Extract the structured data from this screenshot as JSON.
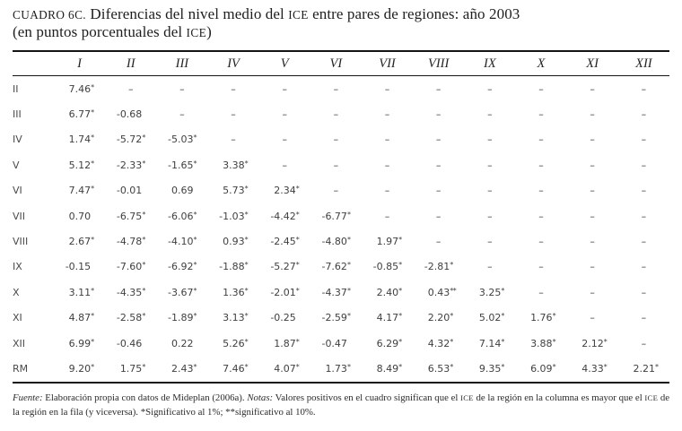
{
  "title": {
    "label": "CUADRO 6C.",
    "ice": "ICE",
    "line1_a": " Diferencias del nivel medio del ",
    "line1_b": " entre pares de regiones: año 2003",
    "line2_a": "(en puntos porcentuales del ",
    "line2_b": ")"
  },
  "table": {
    "empty_marker": "–",
    "col_headers": [
      "I",
      "II",
      "III",
      "IV",
      "V",
      "VI",
      "VII",
      "VIII",
      "IX",
      "X",
      "XI",
      "XII"
    ],
    "rows": [
      {
        "label": "II",
        "cells": [
          "7.46*",
          "–",
          "–",
          "–",
          "–",
          "–",
          "–",
          "–",
          "–",
          "–",
          "–",
          "–"
        ]
      },
      {
        "label": "III",
        "cells": [
          "6.77*",
          "-0.68",
          "–",
          "–",
          "–",
          "–",
          "–",
          "–",
          "–",
          "–",
          "–",
          "–"
        ]
      },
      {
        "label": "IV",
        "cells": [
          "1.74*",
          "-5.72*",
          "-5.03*",
          "–",
          "–",
          "–",
          "–",
          "–",
          "–",
          "–",
          "–",
          "–"
        ]
      },
      {
        "label": "V",
        "cells": [
          "5.12*",
          "-2.33*",
          "-1.65*",
          "3.38*",
          "–",
          "–",
          "–",
          "–",
          "–",
          "–",
          "–",
          "–"
        ]
      },
      {
        "label": "VI",
        "cells": [
          "7.47*",
          "-0.01",
          "0.69",
          "5.73*",
          "2.34*",
          "–",
          "–",
          "–",
          "–",
          "–",
          "–",
          "–"
        ]
      },
      {
        "label": "VII",
        "cells": [
          "0.70",
          "-6.75*",
          "-6.06*",
          "-1.03*",
          "-4.42*",
          "-6.77*",
          "–",
          "–",
          "–",
          "–",
          "–",
          "–"
        ]
      },
      {
        "label": "VIII",
        "cells": [
          "2.67*",
          "-4.78*",
          "-4.10*",
          "0.93*",
          "-2.45*",
          "-4.80*",
          "1.97*",
          "–",
          "–",
          "–",
          "–",
          "–"
        ]
      },
      {
        "label": "IX",
        "cells": [
          "-0.15",
          "-7.60*",
          "-6.92*",
          "-1.88*",
          "-5.27*",
          "-7.62*",
          "-0.85*",
          "-2.81*",
          "–",
          "–",
          "–",
          "–"
        ]
      },
      {
        "label": "X",
        "cells": [
          "3.11*",
          "-4.35*",
          "-3.67*",
          "1.36*",
          "-2.01*",
          "-4.37*",
          "2.40*",
          "0.43**",
          "3.25*",
          "–",
          "–",
          "–"
        ]
      },
      {
        "label": "XI",
        "cells": [
          "4.87*",
          "-2.58*",
          "-1.89*",
          "3.13*",
          "-0.25",
          "-2.59*",
          "4.17*",
          "2.20*",
          "5.02*",
          "1.76*",
          "–",
          "–"
        ]
      },
      {
        "label": "XII",
        "cells": [
          "6.99*",
          "-0.46",
          "0.22",
          "5.26*",
          "1.87*",
          "-0.47",
          "6.29*",
          "4.32*",
          "7.14*",
          "3.88*",
          "2.12*",
          "–"
        ]
      },
      {
        "label": "RM",
        "cells": [
          "9.20*",
          "1.75*",
          "2.43*",
          "7.46*",
          "4.07*",
          "1.73*",
          "8.49*",
          "6.53*",
          "9.35*",
          "6.09*",
          "4.33*",
          "2.21*"
        ]
      }
    ]
  },
  "footnote": {
    "fuente_label": "Fuente:",
    "fuente_text": " Elaboración propia con datos de Mideplan (2006a). ",
    "notas_label": "Notas:",
    "ice": "ICE",
    "notas_a": " Valores positivos en el cuadro significan que el ",
    "notas_b": " de la región en la columna es mayor que el ",
    "notas_c": " de la región en la fila (y viceversa). *Significativo al 1%; **significativo al 10%."
  }
}
